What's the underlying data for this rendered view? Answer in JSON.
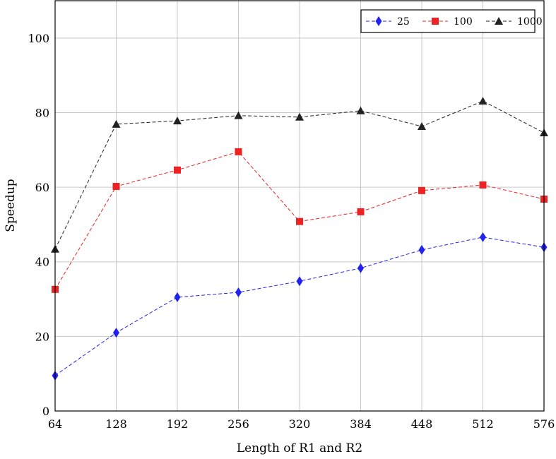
{
  "chart_data": {
    "type": "line",
    "title": "",
    "xlabel": "Length of R1 and R2",
    "ylabel": "Speedup",
    "x": [
      64,
      128,
      192,
      256,
      320,
      384,
      448,
      512,
      576
    ],
    "xticks": [
      "64",
      "128",
      "192",
      "256",
      "320",
      "384",
      "448",
      "512",
      "576"
    ],
    "yticks": [
      "0",
      "20",
      "40",
      "60",
      "80",
      "100"
    ],
    "xlim": [
      64,
      576
    ],
    "ylim": [
      0,
      110
    ],
    "grid": true,
    "legend_position": "top-right",
    "series": [
      {
        "name": "25",
        "color": "#2222ee",
        "marker": "diamond",
        "values": [
          9.5,
          21.0,
          30.5,
          31.8,
          34.8,
          38.3,
          43.2,
          46.6,
          43.9
        ]
      },
      {
        "name": "100",
        "color": "#ee2222",
        "marker": "square",
        "values": [
          32.6,
          60.2,
          64.6,
          69.5,
          50.8,
          53.4,
          59.1,
          60.6,
          56.8
        ]
      },
      {
        "name": "1000",
        "color": "#222222",
        "marker": "triangle",
        "values": [
          43.4,
          76.9,
          77.8,
          79.2,
          78.8,
          80.5,
          76.3,
          83.1,
          74.6
        ]
      }
    ]
  }
}
